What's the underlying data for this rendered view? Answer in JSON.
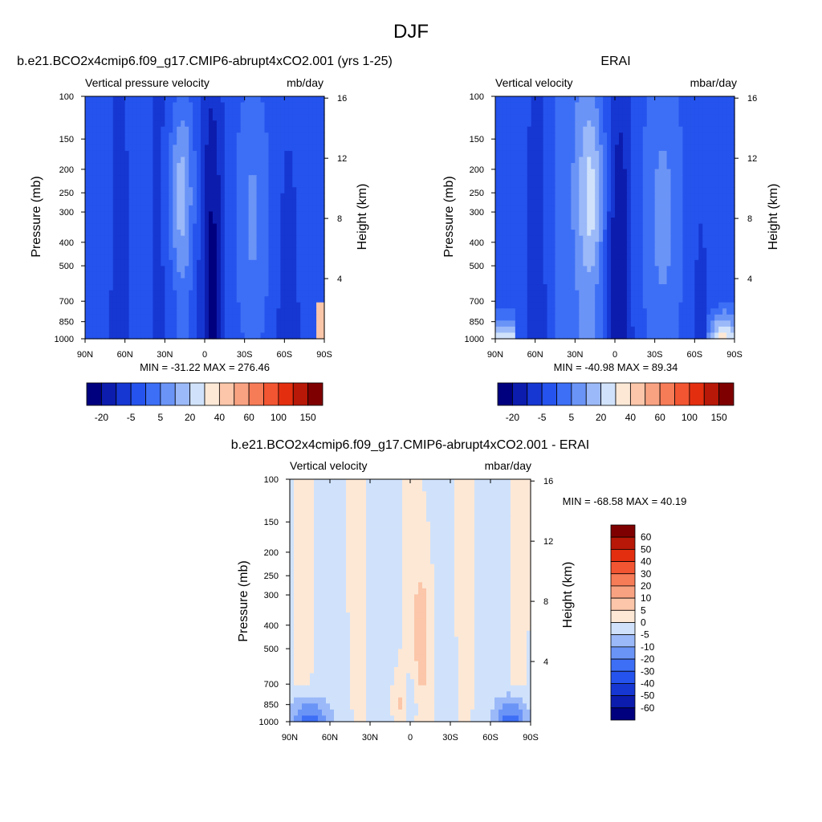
{
  "page_title": "DJF",
  "chart_data": [
    {
      "type": "heatmap",
      "title": "b.e21.BCO2x4cmip6.f09_g17.CMIP6-abrupt4xCO2.001 (yrs 1-25)",
      "left_subtitle": "Vertical pressure velocity",
      "right_subtitle": "mb/day",
      "ylabel": "Pressure (mb)",
      "ylabel_right": "Height (km)",
      "x_ticks": [
        "90N",
        "60N",
        "30N",
        "0",
        "30S",
        "60S",
        "90S"
      ],
      "y_ticks": [
        100,
        150,
        200,
        250,
        300,
        400,
        500,
        700,
        850,
        1000
      ],
      "y_ticks_right": [
        16,
        12,
        8,
        4
      ],
      "stats": "MIN = -31.22  MAX = 276.46",
      "colorbar": {
        "orientation": "horizontal",
        "labels": [
          "-20",
          "-5",
          "5",
          "20",
          "40",
          "60",
          "100",
          "150"
        ],
        "colors": [
          "#00007f",
          "#0c1cad",
          "#1637d2",
          "#2553ed",
          "#3d6ff6",
          "#6b94f7",
          "#9bb9f8",
          "#d0e2fb",
          "#fde8d6",
          "#fbc6a9",
          "#f8a281",
          "#f67b57",
          "#f25531",
          "#e32f10",
          "#b71807",
          "#7f0000"
        ]
      },
      "min": -31.22,
      "max": 276.46
    },
    {
      "type": "heatmap",
      "title": "ERAI",
      "left_subtitle": "Vertical velocity",
      "right_subtitle": "mbar/day",
      "ylabel": "Pressure (mb)",
      "ylabel_right": "Height (km)",
      "x_ticks": [
        "90N",
        "60N",
        "30N",
        "0",
        "30S",
        "60S",
        "90S"
      ],
      "y_ticks": [
        100,
        150,
        200,
        250,
        300,
        400,
        500,
        700,
        850,
        1000
      ],
      "y_ticks_right": [
        16,
        12,
        8,
        4
      ],
      "stats": "MIN = -40.98  MAX =  89.34",
      "colorbar": {
        "orientation": "horizontal",
        "labels": [
          "-20",
          "-5",
          "5",
          "20",
          "40",
          "60",
          "100",
          "150"
        ],
        "colors": [
          "#00007f",
          "#0c1cad",
          "#1637d2",
          "#2553ed",
          "#3d6ff6",
          "#6b94f7",
          "#9bb9f8",
          "#d0e2fb",
          "#fde8d6",
          "#fbc6a9",
          "#f8a281",
          "#f67b57",
          "#f25531",
          "#e32f10",
          "#b71807",
          "#7f0000"
        ]
      },
      "min": -40.98,
      "max": 89.34
    },
    {
      "type": "heatmap",
      "title": "b.e21.BCO2x4cmip6.f09_g17.CMIP6-abrupt4xCO2.001 - ERAI",
      "left_subtitle": "Vertical velocity",
      "right_subtitle": "mbar/day",
      "ylabel": "Pressure (mb)",
      "ylabel_right": "Height (km)",
      "x_ticks": [
        "90N",
        "60N",
        "30N",
        "0",
        "30S",
        "60S",
        "90S"
      ],
      "y_ticks": [
        100,
        150,
        200,
        250,
        300,
        400,
        500,
        700,
        850,
        1000
      ],
      "y_ticks_right": [
        16,
        12,
        8,
        4
      ],
      "stats": "MIN = -68.58  MAX =  40.19",
      "colorbar": {
        "orientation": "vertical",
        "labels": [
          "60",
          "50",
          "40",
          "30",
          "20",
          "10",
          "5",
          "0",
          "-5",
          "-10",
          "-20",
          "-30",
          "-40",
          "-50",
          "-60"
        ],
        "colors": [
          "#7f0000",
          "#b71807",
          "#e32f10",
          "#f25531",
          "#f67b57",
          "#f8a281",
          "#fbc6a9",
          "#fde8d6",
          "#d0e2fb",
          "#9bb9f8",
          "#6b94f7",
          "#3d6ff6",
          "#2553ed",
          "#1637d2",
          "#0c1cad",
          "#00007f"
        ]
      },
      "min": -68.58,
      "max": 40.19
    }
  ]
}
